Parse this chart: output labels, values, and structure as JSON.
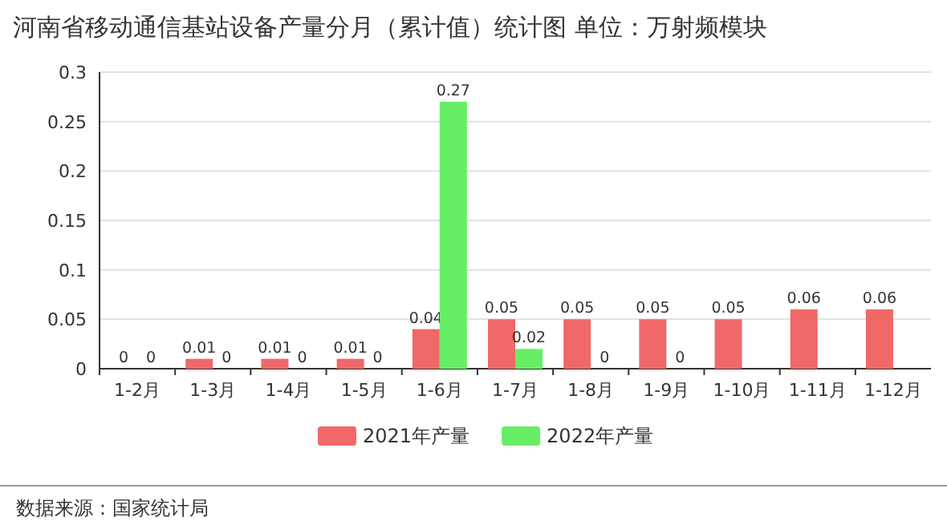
{
  "chart_data": {
    "type": "bar",
    "title": "河南省移动通信基站设备产量分月（累计值）统计图 单位：万射频模块",
    "categories": [
      "1-2月",
      "1-3月",
      "1-4月",
      "1-5月",
      "1-6月",
      "1-7月",
      "1-8月",
      "1-9月",
      "1-10月",
      "1-11月",
      "1-12月"
    ],
    "series": [
      {
        "name": "2021年产量",
        "color": "#f06868",
        "values": [
          0,
          0.01,
          0.01,
          0.01,
          0.04,
          0.05,
          0.05,
          0.05,
          0.05,
          0.06,
          0.06
        ]
      },
      {
        "name": "2022年产量",
        "color": "#66ee66",
        "values": [
          0,
          0,
          0,
          0,
          0.27,
          0.02,
          0,
          0,
          null,
          null,
          null
        ]
      }
    ],
    "ylim": [
      0,
      0.3
    ],
    "yticks": [
      0,
      0.05,
      0.1,
      0.15,
      0.2,
      0.25,
      0.3
    ],
    "grid": "y",
    "legend": "bottom",
    "data_labels": true,
    "annotations": [
      "数据来源：国家统计局"
    ]
  }
}
